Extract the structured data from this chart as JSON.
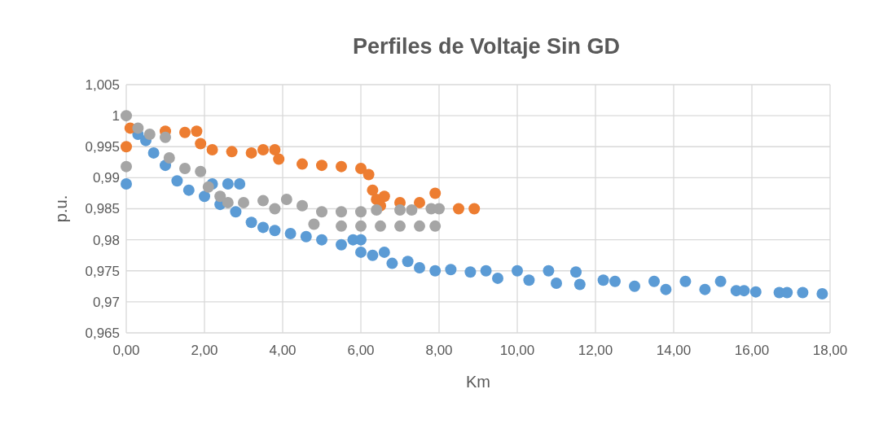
{
  "chart_data": {
    "type": "scatter",
    "title": "Perfiles de Voltaje Sin GD",
    "xlabel": "Km",
    "ylabel": "p.u.",
    "xlim": [
      0,
      18
    ],
    "ylim": [
      0.965,
      1.005
    ],
    "xticks": [
      {
        "value": 0,
        "label": "0,00"
      },
      {
        "value": 2,
        "label": "2,00"
      },
      {
        "value": 4,
        "label": "4,00"
      },
      {
        "value": 6,
        "label": "6,00"
      },
      {
        "value": 8,
        "label": "8,00"
      },
      {
        "value": 10,
        "label": "10,00"
      },
      {
        "value": 12,
        "label": "12,00"
      },
      {
        "value": 14,
        "label": "14,00"
      },
      {
        "value": 16,
        "label": "16,00"
      },
      {
        "value": 18,
        "label": "18,00"
      }
    ],
    "yticks": [
      {
        "value": 0.965,
        "label": "0,965"
      },
      {
        "value": 0.97,
        "label": "0,97"
      },
      {
        "value": 0.975,
        "label": "0,975"
      },
      {
        "value": 0.98,
        "label": "0,98"
      },
      {
        "value": 0.985,
        "label": "0,985"
      },
      {
        "value": 0.99,
        "label": "0,99"
      },
      {
        "value": 0.995,
        "label": "0,995"
      },
      {
        "value": 1,
        "label": "1"
      },
      {
        "value": 1.005,
        "label": "1,005"
      }
    ],
    "grid": true,
    "marker": "circle",
    "series": [
      {
        "color": "#5b9bd5",
        "x": [
          0,
          0.3,
          0.5,
          0.7,
          1.0,
          1.3,
          1.6,
          2.0,
          2.4,
          2.8,
          2.2,
          2.6,
          2.9,
          3.2,
          3.5,
          3.8,
          4.2,
          4.6,
          5.0,
          5.5,
          5.8,
          6.0,
          6.0,
          6.3,
          6.6,
          6.8,
          7.2,
          7.5,
          7.9,
          8.3,
          8.8,
          9.2,
          9.5,
          10.0,
          10.3,
          10.8,
          11.0,
          11.5,
          11.6,
          12.2,
          12.5,
          13.0,
          13.5,
          13.8,
          14.3,
          14.8,
          15.2,
          15.6,
          15.8,
          16.1,
          16.7,
          16.9,
          17.3,
          17.8
        ],
        "values": [
          0.989,
          0.997,
          0.996,
          0.994,
          0.992,
          0.9895,
          0.988,
          0.987,
          0.9857,
          0.9845,
          0.989,
          0.989,
          0.989,
          0.9828,
          0.982,
          0.9815,
          0.981,
          0.9805,
          0.98,
          0.9792,
          0.98,
          0.978,
          0.98,
          0.9775,
          0.978,
          0.9762,
          0.9765,
          0.9755,
          0.975,
          0.9752,
          0.9748,
          0.975,
          0.9738,
          0.975,
          0.9735,
          0.975,
          0.973,
          0.9748,
          0.9728,
          0.9735,
          0.9733,
          0.9725,
          0.9733,
          0.972,
          0.9733,
          0.972,
          0.9733,
          0.9718,
          0.9718,
          0.9716,
          0.9715,
          0.9715,
          0.9715,
          0.9713
        ]
      },
      {
        "color": "#ed7d31",
        "x": [
          0,
          0.1,
          1.0,
          1.5,
          1.8,
          1.9,
          2.2,
          2.7,
          3.2,
          3.5,
          3.8,
          3.9,
          4.5,
          5.0,
          5.5,
          6.0,
          6.2,
          6.3,
          6.4,
          6.5,
          6.6,
          7.0,
          7.5,
          7.9,
          8.5,
          8.9
        ],
        "values": [
          0.995,
          0.998,
          0.9975,
          0.9973,
          0.9975,
          0.9955,
          0.9945,
          0.9942,
          0.994,
          0.9945,
          0.9945,
          0.993,
          0.9922,
          0.992,
          0.9918,
          0.9915,
          0.9905,
          0.988,
          0.9865,
          0.9855,
          0.987,
          0.986,
          0.986,
          0.9875,
          0.985,
          0.985
        ]
      },
      {
        "color": "#a5a5a5",
        "x": [
          0,
          0,
          0.3,
          0.6,
          1.0,
          1.1,
          1.5,
          1.9,
          2.1,
          2.4,
          2.6,
          3.0,
          3.5,
          3.8,
          4.1,
          4.5,
          5.0,
          5.5,
          6.0,
          6.4,
          7.0,
          7.3,
          7.8,
          8.0,
          4.8,
          5.5,
          6.0,
          6.5,
          7.0,
          7.5,
          7.9
        ],
        "values": [
          1.0,
          0.9918,
          0.998,
          0.997,
          0.9965,
          0.9932,
          0.9915,
          0.991,
          0.9885,
          0.987,
          0.986,
          0.986,
          0.9863,
          0.985,
          0.9865,
          0.9855,
          0.9845,
          0.9845,
          0.9845,
          0.9848,
          0.9848,
          0.9848,
          0.985,
          0.985,
          0.9825,
          0.9822,
          0.9822,
          0.9822,
          0.9822,
          0.9822,
          0.9822
        ]
      }
    ]
  }
}
